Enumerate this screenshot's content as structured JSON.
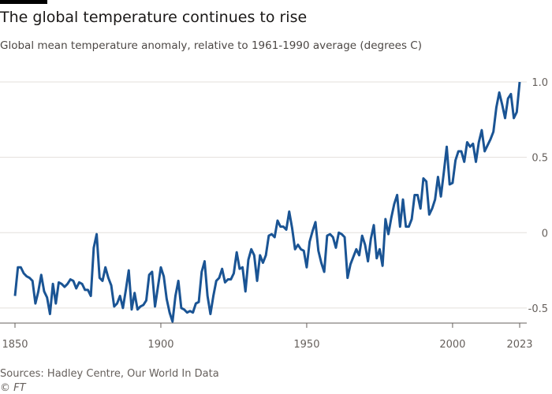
{
  "chart_data": {
    "type": "line",
    "title": "The global temperature continues to rise",
    "subtitle": "Global mean temperature anomaly, relative to 1961-1990 average (degrees C)",
    "source": "Sources: Hadley Centre, Our World In Data",
    "credit": "© FT",
    "x": [
      1850,
      1851,
      1852,
      1853,
      1854,
      1855,
      1856,
      1857,
      1858,
      1859,
      1860,
      1861,
      1862,
      1863,
      1864,
      1865,
      1866,
      1867,
      1868,
      1869,
      1870,
      1871,
      1872,
      1873,
      1874,
      1875,
      1876,
      1877,
      1878,
      1879,
      1880,
      1881,
      1882,
      1883,
      1884,
      1885,
      1886,
      1887,
      1888,
      1889,
      1890,
      1891,
      1892,
      1893,
      1894,
      1895,
      1896,
      1897,
      1898,
      1899,
      1900,
      1901,
      1902,
      1903,
      1904,
      1905,
      1906,
      1907,
      1908,
      1909,
      1910,
      1911,
      1912,
      1913,
      1914,
      1915,
      1916,
      1917,
      1918,
      1919,
      1920,
      1921,
      1922,
      1923,
      1924,
      1925,
      1926,
      1927,
      1928,
      1929,
      1930,
      1931,
      1932,
      1933,
      1934,
      1935,
      1936,
      1937,
      1938,
      1939,
      1940,
      1941,
      1942,
      1943,
      1944,
      1945,
      1946,
      1947,
      1948,
      1949,
      1950,
      1951,
      1952,
      1953,
      1954,
      1955,
      1956,
      1957,
      1958,
      1959,
      1960,
      1961,
      1962,
      1963,
      1964,
      1965,
      1966,
      1967,
      1968,
      1969,
      1970,
      1971,
      1972,
      1973,
      1974,
      1975,
      1976,
      1977,
      1978,
      1979,
      1980,
      1981,
      1982,
      1983,
      1984,
      1985,
      1986,
      1987,
      1988,
      1989,
      1990,
      1991,
      1992,
      1993,
      1994,
      1995,
      1996,
      1997,
      1998,
      1999,
      2000,
      2001,
      2002,
      2003,
      2004,
      2005,
      2006,
      2007,
      2008,
      2009,
      2010,
      2011,
      2012,
      2013,
      2014,
      2015,
      2016,
      2017,
      2018,
      2019,
      2020,
      2021,
      2022,
      2023
    ],
    "series": [
      {
        "name": "Global mean temperature anomaly",
        "color": "#1a5494",
        "values": [
          -0.42,
          -0.23,
          -0.23,
          -0.27,
          -0.29,
          -0.3,
          -0.32,
          -0.47,
          -0.39,
          -0.28,
          -0.39,
          -0.43,
          -0.54,
          -0.34,
          -0.47,
          -0.33,
          -0.34,
          -0.36,
          -0.34,
          -0.31,
          -0.32,
          -0.37,
          -0.33,
          -0.34,
          -0.38,
          -0.38,
          -0.42,
          -0.1,
          -0.01,
          -0.3,
          -0.32,
          -0.23,
          -0.3,
          -0.35,
          -0.49,
          -0.47,
          -0.42,
          -0.5,
          -0.38,
          -0.25,
          -0.51,
          -0.4,
          -0.51,
          -0.49,
          -0.48,
          -0.45,
          -0.28,
          -0.26,
          -0.49,
          -0.36,
          -0.23,
          -0.29,
          -0.44,
          -0.53,
          -0.59,
          -0.42,
          -0.32,
          -0.5,
          -0.51,
          -0.53,
          -0.52,
          -0.53,
          -0.47,
          -0.46,
          -0.26,
          -0.19,
          -0.42,
          -0.54,
          -0.42,
          -0.32,
          -0.3,
          -0.24,
          -0.33,
          -0.31,
          -0.31,
          -0.27,
          -0.13,
          -0.24,
          -0.23,
          -0.39,
          -0.18,
          -0.11,
          -0.15,
          -0.32,
          -0.15,
          -0.2,
          -0.15,
          -0.02,
          -0.01,
          -0.03,
          0.08,
          0.04,
          0.04,
          0.02,
          0.14,
          0.03,
          -0.11,
          -0.08,
          -0.11,
          -0.12,
          -0.23,
          -0.06,
          0.01,
          0.07,
          -0.12,
          -0.2,
          -0.26,
          -0.02,
          -0.01,
          -0.03,
          -0.1,
          0.0,
          -0.01,
          -0.03,
          -0.3,
          -0.21,
          -0.16,
          -0.11,
          -0.15,
          -0.02,
          -0.08,
          -0.19,
          -0.04,
          0.05,
          -0.17,
          -0.11,
          -0.22,
          0.09,
          -0.01,
          0.1,
          0.19,
          0.25,
          0.04,
          0.22,
          0.04,
          0.04,
          0.09,
          0.25,
          0.25,
          0.16,
          0.36,
          0.34,
          0.12,
          0.16,
          0.22,
          0.37,
          0.24,
          0.4,
          0.57,
          0.32,
          0.33,
          0.48,
          0.54,
          0.54,
          0.47,
          0.6,
          0.57,
          0.59,
          0.47,
          0.6,
          0.68,
          0.54,
          0.58,
          0.62,
          0.67,
          0.83,
          0.93,
          0.85,
          0.76,
          0.89,
          0.92,
          0.76,
          0.8,
          1.0
        ]
      }
    ],
    "xlim": [
      1850,
      2023
    ],
    "xticks": [
      1850,
      1900,
      1950,
      2000,
      2023
    ],
    "ylim": [
      -0.6,
      1.0
    ],
    "yticks": [
      {
        "value": -0.5,
        "label": "-0.5"
      },
      0,
      0.5,
      {
        "value": 1.0,
        "label": "1.0"
      }
    ],
    "grid": true
  }
}
